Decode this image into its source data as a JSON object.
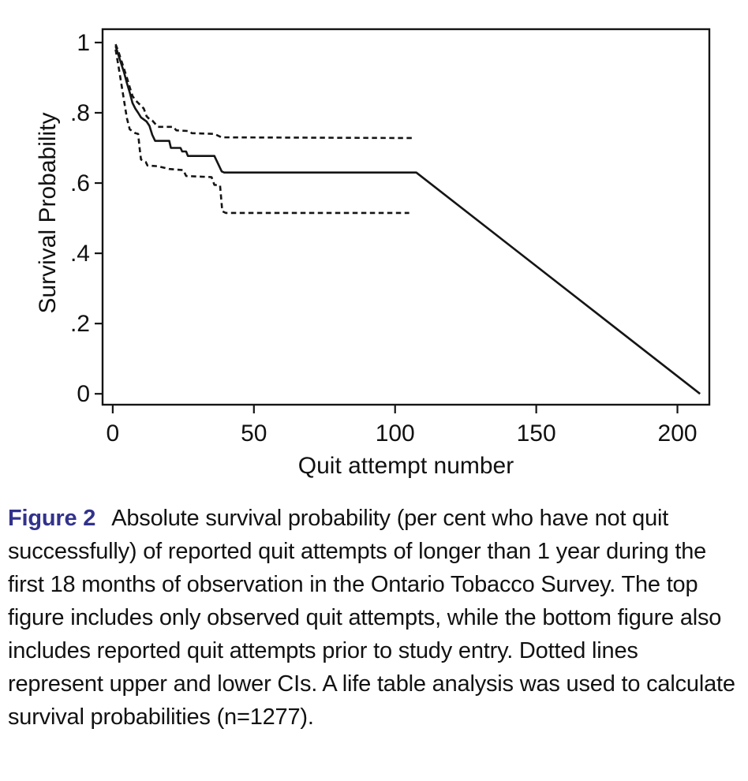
{
  "figure": {
    "caption_label": "Figure 2",
    "caption_text": "Absolute survival probability (per cent who have not quit successfully) of reported quit attempts of longer than 1 year during the first 18 months of observation in the Ontario Tobacco Survey. The top figure includes only observed quit attempts, while the bottom figure also includes reported quit attempts prior to study entry. Dotted lines represent upper and lower CIs. A life table analysis was used to calculate survival probabilities (n=1277).",
    "label_color": "#32328c"
  },
  "chart_data": {
    "type": "line",
    "title": "",
    "xlabel": "Quit attempt number",
    "ylabel": "Survival Probability",
    "xlim": [
      -3.6,
      211.3
    ],
    "ylim": [
      -0.031,
      1.038
    ],
    "x_ticks": [
      0,
      50,
      100,
      150,
      200
    ],
    "x_tick_labels": [
      "0",
      "50",
      "100",
      "150",
      "200"
    ],
    "y_ticks": [
      0,
      0.2,
      0.4,
      0.6,
      0.8,
      1
    ],
    "y_tick_labels": [
      "0",
      ".2",
      ".4",
      ".6",
      ".8",
      "1"
    ],
    "grid": false,
    "frame": "full-box",
    "legend": "none",
    "line_color": "#151515",
    "series": [
      {
        "name": "survival-estimate",
        "style": "solid",
        "points": [
          [
            1,
            0.99
          ],
          [
            2,
            0.965
          ],
          [
            3,
            0.94
          ],
          [
            4,
            0.915
          ],
          [
            5,
            0.885
          ],
          [
            6,
            0.858
          ],
          [
            7,
            0.828
          ],
          [
            8,
            0.812
          ],
          [
            9,
            0.8
          ],
          [
            10,
            0.787
          ],
          [
            12,
            0.775
          ],
          [
            13,
            0.763
          ],
          [
            14,
            0.737
          ],
          [
            15,
            0.72
          ],
          [
            20,
            0.72
          ],
          [
            20.6,
            0.7
          ],
          [
            24,
            0.7
          ],
          [
            24.6,
            0.69
          ],
          [
            26,
            0.69
          ],
          [
            26.6,
            0.677
          ],
          [
            36,
            0.677
          ],
          [
            38.6,
            0.633
          ],
          [
            39.5,
            0.63
          ],
          [
            107.5,
            0.63
          ],
          [
            208,
            0
          ]
        ]
      },
      {
        "name": "upper-ci",
        "style": "dashed",
        "points": [
          [
            1,
            0.995
          ],
          [
            2,
            0.975
          ],
          [
            3,
            0.95
          ],
          [
            4,
            0.925
          ],
          [
            5,
            0.9
          ],
          [
            6,
            0.873
          ],
          [
            7,
            0.848
          ],
          [
            8,
            0.836
          ],
          [
            9,
            0.828
          ],
          [
            10,
            0.82
          ],
          [
            11,
            0.812
          ],
          [
            12,
            0.79
          ],
          [
            13,
            0.782
          ],
          [
            14,
            0.778
          ],
          [
            16,
            0.76
          ],
          [
            21.5,
            0.76
          ],
          [
            22.5,
            0.75
          ],
          [
            27,
            0.748
          ],
          [
            28,
            0.742
          ],
          [
            36,
            0.74
          ],
          [
            38.5,
            0.73
          ],
          [
            107,
            0.728
          ]
        ]
      },
      {
        "name": "lower-ci",
        "style": "dashed",
        "points": [
          [
            1,
            0.98
          ],
          [
            2,
            0.935
          ],
          [
            3,
            0.885
          ],
          [
            4,
            0.835
          ],
          [
            5,
            0.785
          ],
          [
            6,
            0.753
          ],
          [
            8,
            0.742
          ],
          [
            9,
            0.74
          ],
          [
            9.5,
            0.7
          ],
          [
            10,
            0.667
          ],
          [
            11.7,
            0.66
          ],
          [
            12.3,
            0.65
          ],
          [
            16,
            0.648
          ],
          [
            20,
            0.64
          ],
          [
            25,
            0.637
          ],
          [
            26,
            0.62
          ],
          [
            35,
            0.617
          ],
          [
            36,
            0.595
          ],
          [
            38,
            0.593
          ],
          [
            38.8,
            0.52
          ],
          [
            40,
            0.515
          ],
          [
            105,
            0.515
          ]
        ]
      }
    ]
  }
}
